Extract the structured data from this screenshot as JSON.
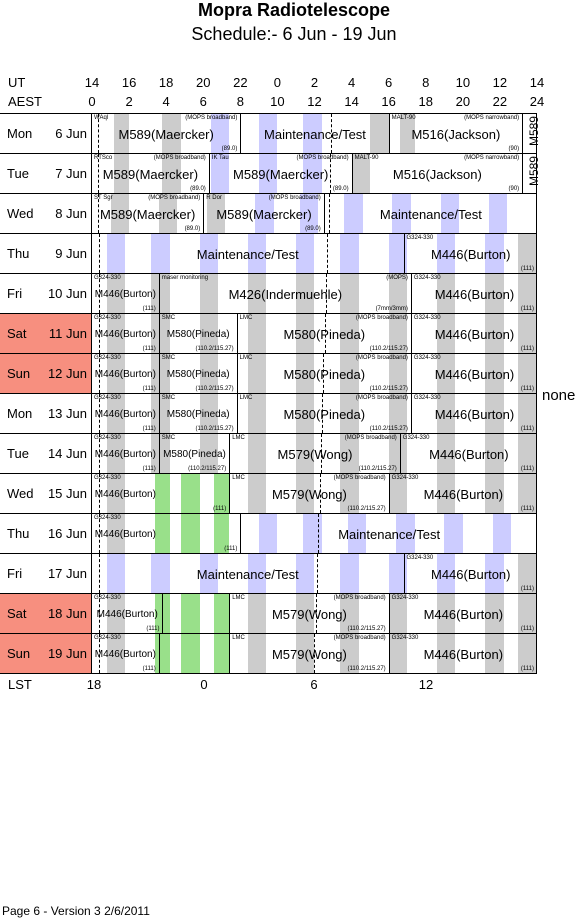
{
  "title": "Mopra Radiotelescope",
  "subtitle": "Schedule:- 6  Jun - 19 Jun",
  "axes": {
    "ut_label": "UT",
    "ut_ticks": [
      "14",
      "16",
      "18",
      "20",
      "22",
      "0",
      "2",
      "4",
      "6",
      "8",
      "10",
      "12",
      "14"
    ],
    "aest_label": "AEST",
    "aest_ticks": [
      "0",
      "2",
      "4",
      "6",
      "8",
      "10",
      "12",
      "14",
      "16",
      "18",
      "20",
      "22",
      "24"
    ],
    "lst_label": "LST",
    "lst_ticks": [
      "18",
      "0",
      "6",
      "12"
    ]
  },
  "side_note": "none",
  "footer": "Page 6 - Version 3  2/6/2011",
  "colors": {
    "weekend": "#f78f7f",
    "grey": "#cccccc",
    "blue": "#ccccff",
    "green": "#99e08a"
  },
  "days": [
    {
      "dow": "Mon",
      "date": "6  Jun",
      "weekend": false,
      "bands": [
        [
          1.2,
          2,
          "grey"
        ],
        [
          3.8,
          4.8,
          "grey"
        ],
        [
          6.4,
          7.4,
          "blue"
        ],
        [
          9,
          10,
          "blue"
        ],
        [
          11.4,
          12.4,
          "blue"
        ],
        [
          15,
          16,
          "grey"
        ],
        [
          16.6,
          17.4,
          "grey"
        ]
      ],
      "blocks": [
        {
          "s": 0,
          "e": 8,
          "main": "M589(Maercker)",
          "tl": "WAql",
          "tr": "(MOPS broadband)",
          "br": "(89.0)"
        },
        {
          "s": 8,
          "e": 16,
          "main": "Maintenance/Test"
        },
        {
          "s": 16,
          "e": 23.2,
          "main": "M516(Jackson)",
          "tl": "MALT-90",
          "tr": "(MOPS narrowband)",
          "br": "(90)"
        },
        {
          "s": 23.2,
          "e": 24,
          "vert": "M589"
        }
      ]
    },
    {
      "dow": "Tue",
      "date": "7  Jun",
      "weekend": false,
      "bands": [
        [
          1.2,
          2,
          "grey"
        ],
        [
          3.8,
          4.8,
          "grey"
        ],
        [
          6.4,
          7.4,
          "blue"
        ],
        [
          9,
          10,
          "blue"
        ],
        [
          11.4,
          12.4,
          "blue"
        ],
        [
          14,
          15,
          "grey"
        ]
      ],
      "blocks": [
        {
          "s": 0,
          "e": 6.3,
          "main": "M589(Maercker)",
          "tl": "RTSco",
          "tr": "(MOPS broadband)",
          "br": "(89.0)"
        },
        {
          "s": 6.3,
          "e": 14,
          "main": "M589(Maercker)",
          "tl": "IK Tau",
          "tr": "(MOPS broadband)",
          "br": "(89.0)"
        },
        {
          "s": 14,
          "e": 23.2,
          "main": "M516(Jackson)",
          "tl": "MALT-90",
          "tr": "(MOPS narrowband)",
          "br": "(90)"
        },
        {
          "s": 23.2,
          "e": 24,
          "vert": "M589"
        }
      ]
    },
    {
      "dow": "Wed",
      "date": "8  Jun",
      "weekend": false,
      "bands": [
        [
          1,
          2,
          "grey"
        ],
        [
          3.6,
          4.6,
          "grey"
        ],
        [
          6.2,
          7.2,
          "grey"
        ],
        [
          8.8,
          9.8,
          "blue"
        ],
        [
          11.2,
          12.2,
          "blue"
        ],
        [
          13.6,
          14.6,
          "blue"
        ],
        [
          16.2,
          17.2,
          "blue"
        ],
        [
          18.8,
          19.8,
          "blue"
        ],
        [
          21.4,
          22.4,
          "blue"
        ]
      ],
      "blocks": [
        {
          "s": 0,
          "e": 6,
          "main": "M589(Maercker)",
          "tl": "ST Sgr",
          "tr": "(MOPS broadband)",
          "br": "(89.0)"
        },
        {
          "s": 6,
          "e": 12.5,
          "main": "M589(Maercker)",
          "tl": "R Dor",
          "tr": "(MOPS broadband)",
          "br": "(89.0)"
        },
        {
          "s": 12.5,
          "e": 24,
          "main": "Maintenance/Test"
        }
      ]
    },
    {
      "dow": "Thu",
      "date": "9  Jun",
      "weekend": false,
      "bands": [
        [
          0.8,
          1.8,
          "blue"
        ],
        [
          3.2,
          4.2,
          "blue"
        ],
        [
          5.8,
          6.8,
          "blue"
        ],
        [
          8.4,
          9.4,
          "blue"
        ],
        [
          11,
          12,
          "blue"
        ],
        [
          13.4,
          14.4,
          "blue"
        ],
        [
          16,
          17,
          "blue"
        ],
        [
          18.6,
          19.6,
          "blue"
        ],
        [
          21.2,
          22.2,
          "blue"
        ],
        [
          23,
          24,
          "grey"
        ]
      ],
      "blocks": [
        {
          "s": 0,
          "e": 16.8,
          "main": "Maintenance/Test"
        },
        {
          "s": 16.8,
          "e": 24,
          "main": "M446(Burton)",
          "tl": "G324-330",
          "br": "(111)"
        }
      ]
    },
    {
      "dow": "Fri",
      "date": "10  Jun",
      "weekend": false,
      "bands": [
        [
          0.8,
          1.8,
          "grey"
        ],
        [
          3.2,
          4.2,
          "grey"
        ],
        [
          5.8,
          6.8,
          "grey"
        ],
        [
          8.4,
          9.4,
          "grey"
        ],
        [
          11,
          12,
          "grey"
        ],
        [
          13.4,
          14.4,
          "grey"
        ],
        [
          16,
          17,
          "grey"
        ],
        [
          18.6,
          19.6,
          "grey"
        ],
        [
          21.2,
          22.2,
          "grey"
        ],
        [
          23,
          24,
          "grey"
        ]
      ],
      "blocks": [
        {
          "s": 0,
          "e": 3.6,
          "main": "M446(Burton)",
          "tl": "G324-330",
          "br": "(111)",
          "sm": true
        },
        {
          "s": 3.6,
          "e": 17.2,
          "main": "M426(Indermuehle)",
          "tl": "maser monitoring",
          "tr": "(MOPS)",
          "br": "(7mm/3mm)"
        },
        {
          "s": 17.2,
          "e": 24,
          "main": "M446(Burton)",
          "tl": "G324-330",
          "br": "(111)"
        }
      ]
    },
    {
      "dow": "Sat",
      "date": "11  Jun",
      "weekend": true,
      "bands": [
        [
          0.8,
          1.8,
          "grey"
        ],
        [
          3.2,
          4.2,
          "grey"
        ],
        [
          5.8,
          6.8,
          "grey"
        ],
        [
          8.4,
          9.4,
          "grey"
        ],
        [
          11,
          12,
          "grey"
        ],
        [
          13.4,
          14.4,
          "grey"
        ],
        [
          16,
          17,
          "grey"
        ],
        [
          18.6,
          19.6,
          "grey"
        ],
        [
          21.2,
          22.2,
          "grey"
        ],
        [
          23,
          24,
          "grey"
        ]
      ],
      "blocks": [
        {
          "s": 0,
          "e": 3.6,
          "main": "M446(Burton)",
          "tl": "G324-330",
          "br": "(111)",
          "sm": true
        },
        {
          "s": 3.6,
          "e": 7.8,
          "main": "M580(Pineda)",
          "tl": "SMC",
          "br": "(110.2/115.27)",
          "sm": true
        },
        {
          "s": 7.8,
          "e": 17.2,
          "main": "M580(Pineda)",
          "tl": "LMC",
          "tr": "(MOPS broadband)",
          "br": "(110.2/115.27)"
        },
        {
          "s": 17.2,
          "e": 24,
          "main": "M446(Burton)",
          "tl": "G324-330",
          "br": "(111)"
        }
      ]
    },
    {
      "dow": "Sun",
      "date": "12  Jun",
      "weekend": true,
      "bands": [
        [
          0.8,
          1.8,
          "grey"
        ],
        [
          3.2,
          4.2,
          "grey"
        ],
        [
          5.8,
          6.8,
          "grey"
        ],
        [
          8.4,
          9.4,
          "grey"
        ],
        [
          11,
          12,
          "grey"
        ],
        [
          13.4,
          14.4,
          "grey"
        ],
        [
          16,
          17,
          "grey"
        ],
        [
          18.6,
          19.6,
          "grey"
        ],
        [
          21.2,
          22.2,
          "grey"
        ],
        [
          23,
          24,
          "grey"
        ]
      ],
      "blocks": [
        {
          "s": 0,
          "e": 3.6,
          "main": "M446(Burton)",
          "tl": "G324-330",
          "br": "(111)",
          "sm": true
        },
        {
          "s": 3.6,
          "e": 7.8,
          "main": "M580(Pineda)",
          "tl": "SMC",
          "br": "(110.2/115.27)",
          "sm": true
        },
        {
          "s": 7.8,
          "e": 17.2,
          "main": "M580(Pineda)",
          "tl": "LMC",
          "tr": "(MOPS broadband)",
          "br": "(110.2/115.27)"
        },
        {
          "s": 17.2,
          "e": 24,
          "main": "M446(Burton)",
          "tl": "G324-330",
          "br": "(111)"
        }
      ]
    },
    {
      "dow": "Mon",
      "date": "13  Jun",
      "weekend": false,
      "bands": [
        [
          0.8,
          1.8,
          "grey"
        ],
        [
          3.2,
          4.2,
          "grey"
        ],
        [
          5.8,
          6.8,
          "grey"
        ],
        [
          8.4,
          9.4,
          "grey"
        ],
        [
          11,
          12,
          "grey"
        ],
        [
          13.4,
          14.4,
          "grey"
        ],
        [
          16,
          17,
          "grey"
        ],
        [
          18.6,
          19.6,
          "grey"
        ],
        [
          21.2,
          22.2,
          "grey"
        ],
        [
          23,
          24,
          "grey"
        ]
      ],
      "blocks": [
        {
          "s": 0,
          "e": 3.6,
          "main": "M446(Burton)",
          "tl": "G324-330",
          "br": "(111)",
          "sm": true
        },
        {
          "s": 3.6,
          "e": 7.8,
          "main": "M580(Pineda)",
          "tl": "SMC",
          "br": "(110.2/115.27)",
          "sm": true
        },
        {
          "s": 7.8,
          "e": 17.2,
          "main": "M580(Pineda)",
          "tl": "LMC",
          "tr": "(MOPS broadband)",
          "br": "(110.2/115.27)"
        },
        {
          "s": 17.2,
          "e": 24,
          "main": "M446(Burton)",
          "tl": "G324-330",
          "br": "(111)"
        }
      ]
    },
    {
      "dow": "Tue",
      "date": "14  Jun",
      "weekend": false,
      "bands": [
        [
          0.8,
          1.8,
          "grey"
        ],
        [
          3.2,
          4.2,
          "grey"
        ],
        [
          5.8,
          6.8,
          "grey"
        ],
        [
          8.4,
          9.4,
          "grey"
        ],
        [
          11,
          12,
          "grey"
        ],
        [
          13.4,
          14.4,
          "grey"
        ],
        [
          16,
          17,
          "grey"
        ],
        [
          18.6,
          19.6,
          "grey"
        ],
        [
          21.2,
          22.2,
          "grey"
        ],
        [
          23,
          24,
          "grey"
        ]
      ],
      "blocks": [
        {
          "s": 0,
          "e": 3.6,
          "main": "M446(Burton)",
          "tl": "G324-330",
          "br": "(111)",
          "sm": true
        },
        {
          "s": 3.6,
          "e": 7.4,
          "main": "M580(Pineda)",
          "tl": "SMC",
          "br": "(110.2/115.27)",
          "sm": true
        },
        {
          "s": 7.4,
          "e": 16.6,
          "main": "M579(Wong)",
          "tl": "LMC",
          "tr": "(MOPS broadband)",
          "br": "(110.2/115.27)"
        },
        {
          "s": 16.6,
          "e": 24,
          "main": "M446(Burton)",
          "tl": "G324-330",
          "br": "(111)"
        }
      ]
    },
    {
      "dow": "Wed",
      "date": "15  Jun",
      "weekend": false,
      "bands": [
        [
          0.8,
          1.8,
          "grey"
        ],
        [
          3.4,
          4.2,
          "green"
        ],
        [
          4.8,
          5.8,
          "green"
        ],
        [
          6.6,
          7.4,
          "green"
        ],
        [
          8.4,
          9.4,
          "grey"
        ],
        [
          11,
          12,
          "grey"
        ],
        [
          13.4,
          14.4,
          "grey"
        ],
        [
          16,
          17,
          "grey"
        ],
        [
          18.6,
          19.6,
          "grey"
        ],
        [
          21.2,
          22.2,
          "grey"
        ],
        [
          23,
          24,
          "grey"
        ]
      ],
      "blocks": [
        {
          "s": 0,
          "e": 7.4,
          "main": "M446(Burton)",
          "tl": "G324-330",
          "br": "(111)",
          "sm": true,
          "mainw": 3.6
        },
        {
          "s": 7.4,
          "e": 16,
          "main": "M579(Wong)",
          "tl": "LMC",
          "tr": "(MOPS broadband)",
          "br": "(110.2/115.27)"
        },
        {
          "s": 16,
          "e": 24,
          "main": "M446(Burton)",
          "tl": "G324-330",
          "br": "(111)"
        }
      ]
    },
    {
      "dow": "Thu",
      "date": "16  Jun",
      "weekend": false,
      "bands": [
        [
          0.8,
          1.8,
          "grey"
        ],
        [
          3.4,
          4.2,
          "green"
        ],
        [
          4.8,
          5.8,
          "green"
        ],
        [
          6.6,
          7.4,
          "green"
        ],
        [
          9,
          10,
          "blue"
        ],
        [
          11.4,
          12.4,
          "blue"
        ],
        [
          13.8,
          14.8,
          "blue"
        ],
        [
          16.4,
          17.4,
          "blue"
        ],
        [
          19,
          20,
          "blue"
        ],
        [
          21.6,
          22.6,
          "blue"
        ]
      ],
      "blocks": [
        {
          "s": 0,
          "e": 8,
          "main": "M446(Burton)",
          "tl": "G324-330",
          "br": "(111)",
          "sm": true,
          "mainw": 3.6
        },
        {
          "s": 8,
          "e": 24,
          "main": "Maintenance/Test"
        }
      ]
    },
    {
      "dow": "Fri",
      "date": "17  Jun",
      "weekend": false,
      "bands": [
        [
          0.8,
          1.8,
          "blue"
        ],
        [
          3.2,
          4.2,
          "blue"
        ],
        [
          5.8,
          6.8,
          "blue"
        ],
        [
          8.4,
          9.4,
          "blue"
        ],
        [
          11,
          12,
          "blue"
        ],
        [
          13.4,
          14.4,
          "blue"
        ],
        [
          16,
          17,
          "blue"
        ],
        [
          18.6,
          19.6,
          "blue"
        ],
        [
          21.2,
          22.2,
          "blue"
        ],
        [
          23,
          24,
          "grey"
        ]
      ],
      "blocks": [
        {
          "s": 0,
          "e": 16.8,
          "main": "Maintenance/Test"
        },
        {
          "s": 16.8,
          "e": 24,
          "main": "M446(Burton)",
          "tl": "G324-330",
          "br": "(111)"
        }
      ]
    },
    {
      "dow": "Sat",
      "date": "18  Jun",
      "weekend": true,
      "bands": [
        [
          0.8,
          1.8,
          "grey"
        ],
        [
          3.4,
          4.2,
          "green"
        ],
        [
          4.8,
          5.8,
          "green"
        ],
        [
          6.6,
          7.4,
          "green"
        ],
        [
          8.4,
          9.4,
          "grey"
        ],
        [
          11,
          12,
          "grey"
        ],
        [
          13.4,
          14.4,
          "grey"
        ],
        [
          16,
          17,
          "grey"
        ],
        [
          18.6,
          19.6,
          "grey"
        ],
        [
          21.2,
          22.2,
          "grey"
        ],
        [
          23,
          24,
          "grey"
        ]
      ],
      "blocks": [
        {
          "s": 0,
          "e": 3.8,
          "main": "M446(Burton)",
          "tl": "G324-330",
          "br": "(111)",
          "sm": true
        },
        {
          "s": 3.8,
          "e": 7.4,
          "main": ""
        },
        {
          "s": 7.4,
          "e": 16,
          "main": "M579(Wong)",
          "tl": "LMC",
          "tr": "(MOPS broadband)",
          "br": "(110.2/115.27)"
        },
        {
          "s": 16,
          "e": 24,
          "main": "M446(Burton)",
          "tl": "G324-330",
          "br": "(111)"
        }
      ]
    },
    {
      "dow": "Sun",
      "date": "19  Jun",
      "weekend": true,
      "bands": [
        [
          0.8,
          1.8,
          "grey"
        ],
        [
          3.4,
          4.2,
          "green"
        ],
        [
          4.8,
          5.8,
          "green"
        ],
        [
          6.6,
          7.4,
          "green"
        ],
        [
          8.4,
          9.4,
          "grey"
        ],
        [
          11,
          12,
          "grey"
        ],
        [
          13.4,
          14.4,
          "grey"
        ],
        [
          16,
          17,
          "grey"
        ],
        [
          18.6,
          19.6,
          "grey"
        ],
        [
          21.2,
          22.2,
          "grey"
        ],
        [
          23,
          24,
          "grey"
        ]
      ],
      "blocks": [
        {
          "s": 0,
          "e": 3.6,
          "main": "M446(Burton)",
          "tl": "G324-330",
          "br": "(111)",
          "sm": true
        },
        {
          "s": 3.6,
          "e": 7.4,
          "main": ""
        },
        {
          "s": 7.4,
          "e": 16,
          "main": "M579(Wong)",
          "tl": "LMC",
          "tr": "(MOPS broadband)",
          "br": "(110.2/115.27)"
        },
        {
          "s": 16,
          "e": 24,
          "main": "M446(Burton)",
          "tl": "G324-330",
          "br": "(111)"
        }
      ]
    }
  ]
}
